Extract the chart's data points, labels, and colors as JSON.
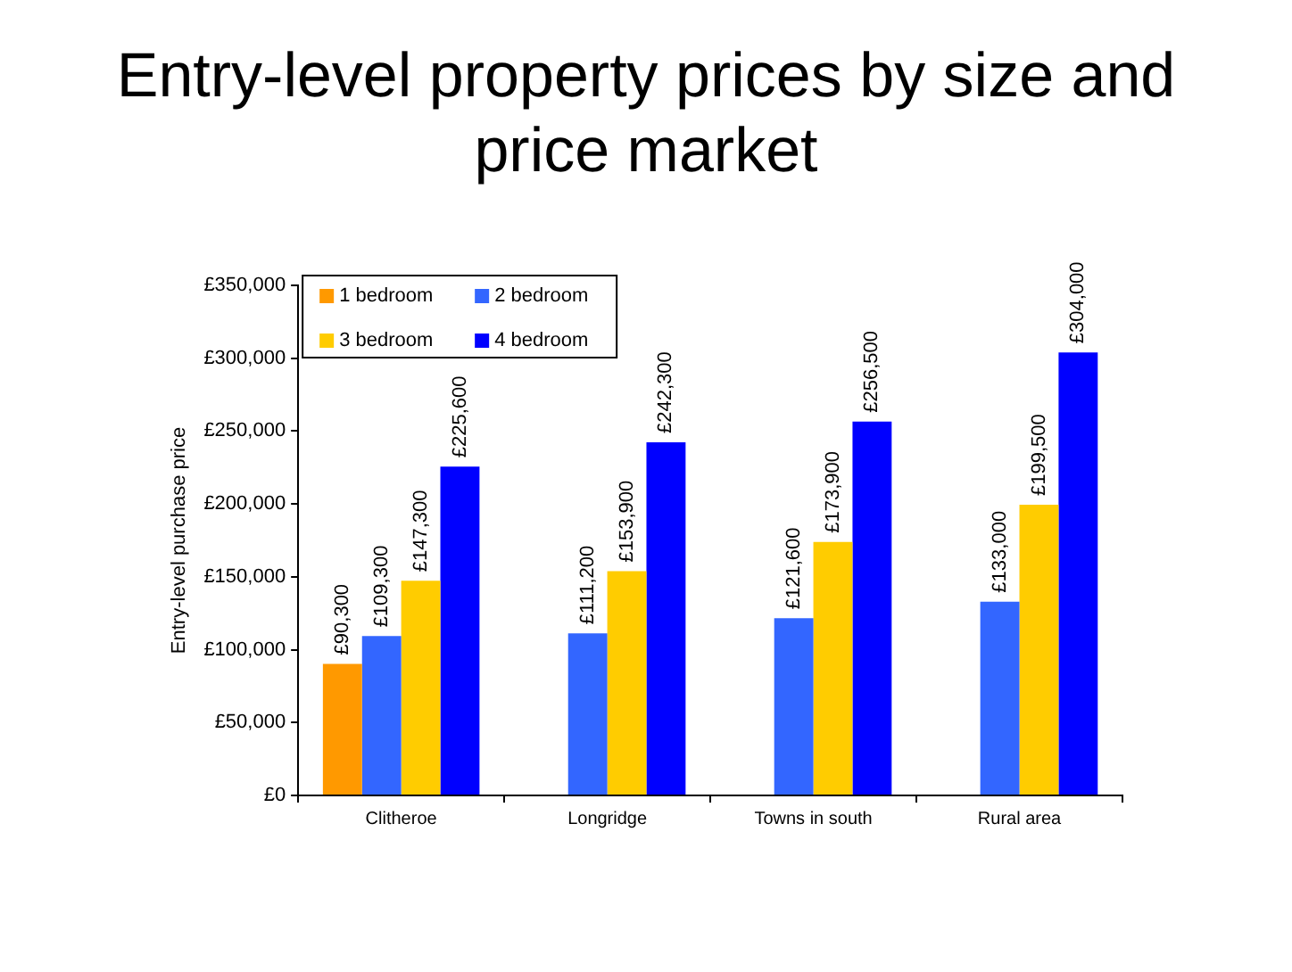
{
  "chart_data": {
    "type": "bar",
    "title": "Entry-level property prices by size and price market",
    "ylabel": "Entry-level purchase price",
    "categories": [
      "Clitheroe",
      "Longridge",
      "Towns in south",
      "Rural area"
    ],
    "series": [
      {
        "name": "1 bedroom",
        "color": "#ff9900",
        "values": [
          90300,
          null,
          null,
          null
        ],
        "value_labels": [
          "£90,300",
          null,
          null,
          null
        ]
      },
      {
        "name": "2 bedroom",
        "color": "#3366ff",
        "values": [
          109300,
          111200,
          121600,
          133000
        ],
        "value_labels": [
          "£109,300",
          "£111,200",
          "£121,600",
          "£133,000"
        ]
      },
      {
        "name": "3 bedroom",
        "color": "#ffcc00",
        "values": [
          147300,
          153900,
          173900,
          199500
        ],
        "value_labels": [
          "£147,300",
          "£153,900",
          "£173,900",
          "£199,500"
        ]
      },
      {
        "name": "4 bedroom",
        "color": "#0000ff",
        "values": [
          225600,
          242300,
          256500,
          304000
        ],
        "value_labels": [
          "£225,600",
          "£242,300",
          "£256,500",
          "£304,000"
        ]
      }
    ],
    "ylim": [
      0,
      350000
    ],
    "yticks": [
      {
        "value": 0,
        "label": "£0"
      },
      {
        "value": 50000,
        "label": "£50,000"
      },
      {
        "value": 100000,
        "label": "£100,000"
      },
      {
        "value": 150000,
        "label": "£150,000"
      },
      {
        "value": 200000,
        "label": "£200,000"
      },
      {
        "value": 250000,
        "label": "£250,000"
      },
      {
        "value": 300000,
        "label": "£300,000"
      },
      {
        "value": 350000,
        "label": "£350,000"
      }
    ],
    "grid": false,
    "legend": "top left"
  }
}
